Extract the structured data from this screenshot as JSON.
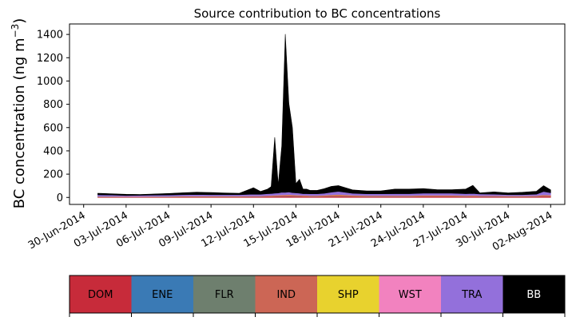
{
  "chart_data": {
    "type": "area",
    "stacked": true,
    "title": "Source contribution to BC concentrations",
    "ylabel": "BC concentration (ng m⁻³)",
    "ylabel_main": "BC concentration (ng m",
    "ylabel_sup": "−3",
    "ylabel_close": ")",
    "xlabel": "",
    "ylim": [
      -60,
      1490
    ],
    "yticks": [
      0,
      200,
      400,
      600,
      800,
      1000,
      1200,
      1400
    ],
    "xlim": [
      "2014-06-29",
      "2014-08-03"
    ],
    "xticks": [
      "2014-06-30",
      "2014-07-03",
      "2014-07-06",
      "2014-07-09",
      "2014-07-12",
      "2014-07-15",
      "2014-07-18",
      "2014-07-21",
      "2014-07-24",
      "2014-07-27",
      "2014-07-30",
      "2014-08-02"
    ],
    "xtick_labels": [
      "30-Jun-2014",
      "03-Jul-2014",
      "06-Jul-2014",
      "09-Jul-2014",
      "12-Jul-2014",
      "15-Jul-2014",
      "18-Jul-2014",
      "21-Jul-2014",
      "24-Jul-2014",
      "27-Jul-2014",
      "30-Jul-2014",
      "02-Aug-2014"
    ],
    "x": [
      "2014-07-01",
      "2014-07-02",
      "2014-07-03",
      "2014-07-04",
      "2014-07-05",
      "2014-07-06",
      "2014-07-07",
      "2014-07-08",
      "2014-07-09",
      "2014-07-10",
      "2014-07-11",
      "2014-07-12",
      "2014-07-12 12:00",
      "2014-07-13",
      "2014-07-13 06:00",
      "2014-07-13 12:00",
      "2014-07-13 18:00",
      "2014-07-14",
      "2014-07-14 06:00",
      "2014-07-14 12:00",
      "2014-07-14 18:00",
      "2014-07-15",
      "2014-07-15 06:00",
      "2014-07-15 12:00",
      "2014-07-15 18:00",
      "2014-07-16",
      "2014-07-16 12:00",
      "2014-07-17",
      "2014-07-17 12:00",
      "2014-07-18",
      "2014-07-19",
      "2014-07-20",
      "2014-07-21",
      "2014-07-22",
      "2014-07-23",
      "2014-07-24",
      "2014-07-25",
      "2014-07-26",
      "2014-07-27",
      "2014-07-27 12:00",
      "2014-07-28",
      "2014-07-29",
      "2014-07-30",
      "2014-07-31",
      "2014-08-01",
      "2014-08-01 12:00",
      "2014-08-02"
    ],
    "series": [
      {
        "name": "DOM",
        "color": "#c72b3a",
        "values": [
          4,
          4,
          3,
          3,
          4,
          4,
          5,
          5,
          5,
          5,
          5,
          6,
          6,
          7,
          7,
          8,
          8,
          9,
          9,
          10,
          9,
          8,
          8,
          7,
          7,
          6,
          6,
          7,
          8,
          9,
          7,
          6,
          6,
          6,
          6,
          7,
          7,
          7,
          6,
          7,
          6,
          6,
          5,
          5,
          6,
          8,
          7
        ]
      },
      {
        "name": "ENE",
        "color": "#3a7ab5",
        "values": [
          1,
          1,
          1,
          1,
          1,
          1,
          1,
          1,
          1,
          1,
          1,
          1,
          1,
          1,
          1,
          1,
          1,
          1,
          1,
          1,
          1,
          1,
          1,
          1,
          1,
          1,
          1,
          1,
          1,
          1,
          1,
          1,
          1,
          1,
          1,
          1,
          1,
          1,
          1,
          1,
          1,
          1,
          1,
          1,
          1,
          1,
          1
        ]
      },
      {
        "name": "FLR",
        "color": "#6e7f6e",
        "values": [
          0,
          0,
          0,
          0,
          0,
          0,
          0,
          0,
          0,
          0,
          0,
          0,
          0,
          0,
          0,
          0,
          0,
          0,
          0,
          0,
          0,
          0,
          0,
          0,
          0,
          0,
          0,
          0,
          0,
          0,
          0,
          0,
          0,
          0,
          0,
          0,
          0,
          0,
          0,
          0,
          0,
          0,
          0,
          0,
          0,
          0,
          0
        ]
      },
      {
        "name": "IND",
        "color": "#cc6655",
        "values": [
          3,
          3,
          3,
          3,
          3,
          3,
          4,
          4,
          4,
          4,
          4,
          5,
          5,
          6,
          7,
          8,
          9,
          10,
          11,
          12,
          11,
          10,
          9,
          8,
          8,
          8,
          8,
          9,
          12,
          14,
          9,
          8,
          8,
          8,
          8,
          9,
          9,
          9,
          8,
          8,
          7,
          7,
          6,
          6,
          7,
          12,
          10
        ]
      },
      {
        "name": "SHP",
        "color": "#e8d22e",
        "values": [
          1,
          1,
          1,
          1,
          1,
          1,
          1,
          1,
          1,
          1,
          1,
          1,
          1,
          1,
          1,
          1,
          1,
          1,
          1,
          1,
          1,
          1,
          1,
          1,
          1,
          1,
          1,
          1,
          1,
          1,
          1,
          1,
          1,
          1,
          1,
          1,
          1,
          1,
          1,
          1,
          1,
          1,
          1,
          1,
          1,
          1,
          1
        ]
      },
      {
        "name": "WST",
        "color": "#f282bf",
        "values": [
          1,
          1,
          1,
          1,
          1,
          1,
          1,
          1,
          1,
          1,
          1,
          1,
          1,
          1,
          1,
          1,
          1,
          1,
          1,
          1,
          1,
          1,
          1,
          1,
          1,
          1,
          1,
          1,
          1,
          1,
          1,
          1,
          1,
          1,
          1,
          1,
          1,
          1,
          1,
          1,
          1,
          1,
          1,
          1,
          1,
          1,
          1
        ]
      },
      {
        "name": "TRA",
        "color": "#9370db",
        "values": [
          12,
          11,
          8,
          9,
          10,
          11,
          12,
          13,
          12,
          12,
          12,
          14,
          13,
          16,
          16,
          18,
          18,
          22,
          20,
          22,
          18,
          18,
          16,
          14,
          14,
          14,
          14,
          16,
          22,
          26,
          16,
          14,
          14,
          15,
          15,
          17,
          17,
          17,
          15,
          16,
          13,
          12,
          10,
          10,
          12,
          28,
          20
        ]
      },
      {
        "name": "BB",
        "color": "#000000",
        "values": [
          14,
          10,
          10,
          8,
          10,
          13,
          16,
          20,
          18,
          14,
          12,
          55,
          24,
          40,
          60,
          480,
          70,
          400,
          1360,
          760,
          560,
          80,
          120,
          40,
          40,
          30,
          30,
          40,
          50,
          50,
          30,
          25,
          25,
          40,
          40,
          40,
          30,
          30,
          40,
          70,
          10,
          20,
          15,
          20,
          25,
          50,
          25
        ]
      }
    ]
  }
}
